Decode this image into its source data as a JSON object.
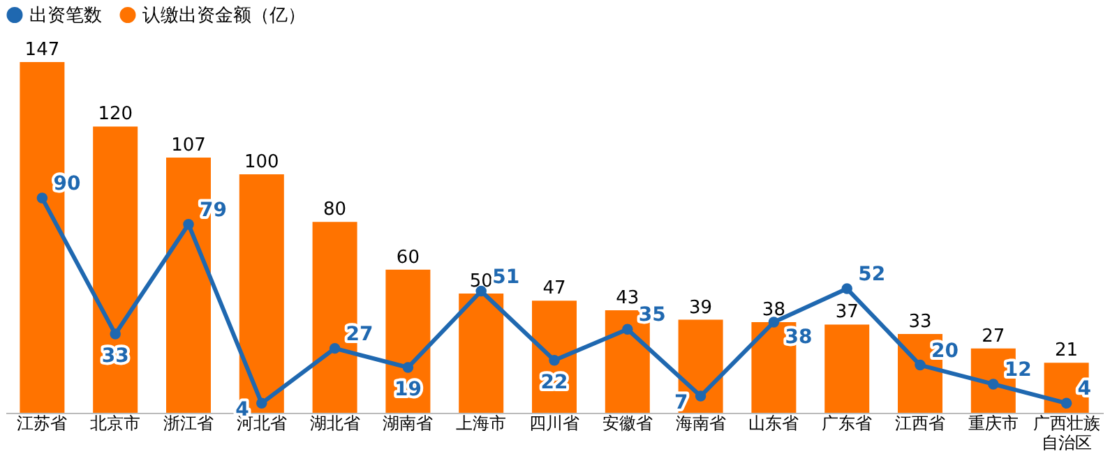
{
  "chart_data": {
    "type": "bar",
    "categories": [
      "江苏省",
      "北京市",
      "浙江省",
      "河北省",
      "湖北省",
      "湖南省",
      "上海市",
      "四川省",
      "安徽省",
      "海南省",
      "山东省",
      "广东省",
      "江西省",
      "重庆市",
      "广西壮族自治区"
    ],
    "series": [
      {
        "name": "出资笔数",
        "type": "line",
        "color": "#1f68b0",
        "values": [
          90,
          33,
          79,
          4,
          27,
          19,
          51,
          22,
          35,
          7,
          38,
          52,
          20,
          12,
          4
        ]
      },
      {
        "name": "认缴出资金额（亿）",
        "color": "#ff7300",
        "values": [
          147,
          120,
          107,
          100,
          80,
          60,
          50,
          47,
          43,
          39,
          38,
          37,
          33,
          27,
          21
        ]
      }
    ],
    "data_labels": true,
    "legend": "top",
    "marker": "circle",
    "line_style": "solid",
    "grid": false
  }
}
